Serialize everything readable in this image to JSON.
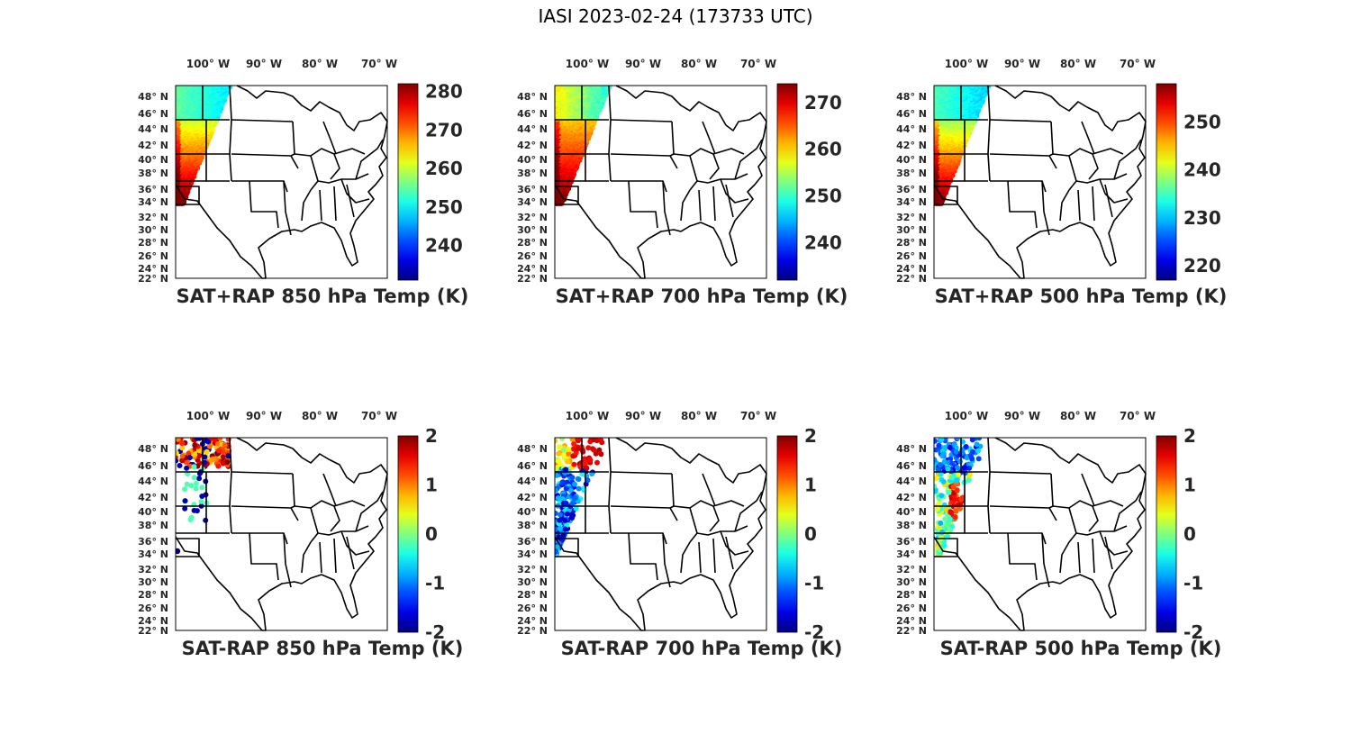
{
  "figure": {
    "title": "IASI 2023-02-24 (173733 UTC)"
  },
  "map": {
    "lon_ticks": [
      "100° W",
      "90° W",
      "80° W",
      "70° W"
    ],
    "lat_ticks": [
      "48° N",
      "46° N",
      "44° N",
      "42° N",
      "40° N",
      "38° N",
      "36° N",
      "34° N",
      "32° N",
      "30° N",
      "28° N",
      "26° N",
      "24° N",
      "22° N"
    ],
    "colormap": "jet"
  },
  "panels": [
    {
      "title": "SAT+RAP 850 hPa Temp (K)",
      "colorbar": {
        "ticks": [
          "280",
          "270",
          "260",
          "250",
          "240"
        ],
        "range": [
          231,
          282
        ]
      },
      "kind": "abs850"
    },
    {
      "title": "SAT+RAP 700 hPa Temp (K)",
      "colorbar": {
        "ticks": [
          "270",
          "260",
          "250",
          "240"
        ],
        "range": [
          232,
          274
        ]
      },
      "kind": "abs700"
    },
    {
      "title": "SAT+RAP 500 hPa Temp (K)",
      "colorbar": {
        "ticks": [
          "250",
          "240",
          "230",
          "220"
        ],
        "range": [
          217,
          258
        ]
      },
      "kind": "abs500"
    },
    {
      "title": "SAT-RAP 850 hPa Temp (K)",
      "colorbar": {
        "ticks": [
          "2",
          "1",
          "0",
          "-1",
          "-2"
        ],
        "range": [
          -2,
          2
        ]
      },
      "kind": "diff850"
    },
    {
      "title": "SAT-RAP 700 hPa Temp (K)",
      "colorbar": {
        "ticks": [
          "2",
          "1",
          "0",
          "-1",
          "-2"
        ],
        "range": [
          -2,
          2
        ]
      },
      "kind": "diff700"
    },
    {
      "title": "SAT-RAP 500 hPa Temp (K)",
      "colorbar": {
        "ticks": [
          "2",
          "1",
          "0",
          "-1",
          "-2"
        ],
        "range": [
          -2,
          2
        ]
      },
      "kind": "diff500"
    }
  ]
}
